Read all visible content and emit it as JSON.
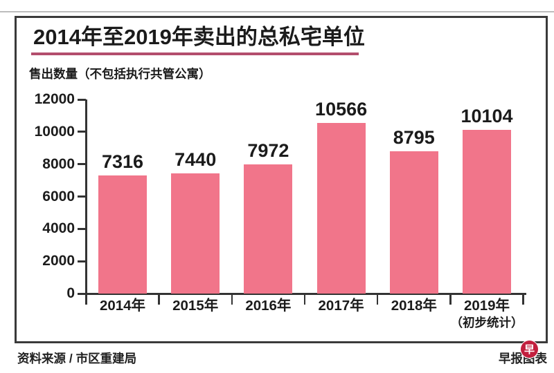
{
  "header": {
    "title": "2014年至2019年卖出的总私宅单位",
    "subtitle": "售出数量（不包括执行共管公寓）"
  },
  "chart_data": {
    "type": "bar",
    "title": "2014年至2019年卖出的总私宅单位",
    "ylabel": "售出数量（不包括执行共管公寓）",
    "categories": [
      "2014年",
      "2015年",
      "2016年",
      "2017年",
      "2018年",
      "2019年"
    ],
    "category_note": {
      "index": 5,
      "text": "（初步统计）"
    },
    "values": [
      7316,
      7440,
      7972,
      10566,
      8795,
      10104
    ],
    "yticks": [
      0,
      2000,
      4000,
      6000,
      8000,
      10000,
      12000
    ],
    "ylim": [
      0,
      12000
    ],
    "grid": false,
    "legend": "none",
    "value_labels_position": "above-bars"
  },
  "footer": {
    "source": "资料来源 / 市区重建局",
    "credit": "早报图表",
    "logo_glyph": "早"
  },
  "colors": {
    "bar": "#F1758A",
    "title_underline": "#B34E6D",
    "axis": "#333333",
    "logo": "#C21F3E"
  }
}
